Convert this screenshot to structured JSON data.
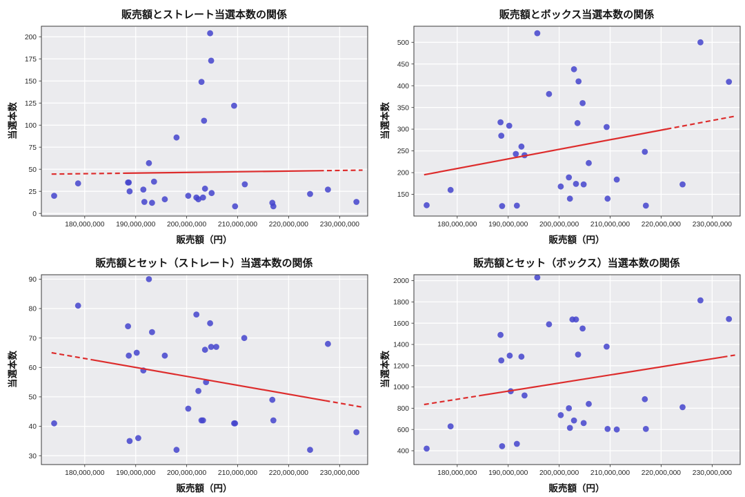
{
  "style": {
    "dot_color": "#4444cc",
    "dot_opacity": 0.85,
    "trend_color": "#dd2c2c",
    "plot_bg": "#ebebee",
    "grid_color": "#ffffff",
    "spine_color": "#3a3a3a",
    "tick_text_color": "#262626"
  },
  "chart_data": [
    {
      "type": "scatter",
      "title": "販売額とストレート当選本数の関係",
      "xlabel": "販売額（円）",
      "ylabel": "当選本数",
      "x_unit": "million_yen",
      "xlim_million": [
        171.5,
        235.5
      ],
      "ylim": [
        -3,
        212
      ],
      "xticks_million": [
        180,
        190,
        200,
        210,
        220,
        230
      ],
      "xtick_labels": [
        "180,000,000",
        "190,000,000",
        "200,000,000",
        "210,000,000",
        "220,000,000",
        "230,000,000"
      ],
      "yticks": [
        0,
        25,
        50,
        75,
        100,
        125,
        150,
        175,
        200
      ],
      "points": [
        [
          174.0,
          20
        ],
        [
          178.7,
          34
        ],
        [
          188.5,
          35
        ],
        [
          188.65,
          35
        ],
        [
          188.8,
          25
        ],
        [
          191.5,
          27
        ],
        [
          191.7,
          13
        ],
        [
          192.6,
          57
        ],
        [
          193.2,
          12
        ],
        [
          193.6,
          36
        ],
        [
          195.7,
          16
        ],
        [
          198.0,
          86
        ],
        [
          200.3,
          20
        ],
        [
          201.9,
          18
        ],
        [
          202.3,
          16
        ],
        [
          202.9,
          149
        ],
        [
          203.2,
          18
        ],
        [
          203.4,
          105
        ],
        [
          203.6,
          28
        ],
        [
          204.6,
          204
        ],
        [
          204.8,
          173
        ],
        [
          204.9,
          23
        ],
        [
          209.3,
          122
        ],
        [
          209.5,
          8
        ],
        [
          211.4,
          33
        ],
        [
          216.8,
          12
        ],
        [
          217.0,
          8
        ],
        [
          224.2,
          22
        ],
        [
          227.7,
          27
        ],
        [
          233.3,
          13
        ]
      ],
      "trend": {
        "x1_million": 173.5,
        "y1": 44.5,
        "x2_million": 234.5,
        "y2": 49.0,
        "dash_left": 0.24,
        "dash_right": 0.14
      }
    },
    {
      "type": "scatter",
      "title": "販売額とボックス当選本数の関係",
      "xlabel": "販売額（円）",
      "ylabel": "当選本数",
      "x_unit": "million_yen",
      "xlim_million": [
        171.5,
        235.5
      ],
      "ylim": [
        100,
        537
      ],
      "xticks_million": [
        180,
        190,
        200,
        210,
        220,
        230
      ],
      "xtick_labels": [
        "180,000,000",
        "190,000,000",
        "200,000,000",
        "210,000,000",
        "220,000,000",
        "230,000,000"
      ],
      "yticks": [
        150,
        200,
        250,
        300,
        350,
        400,
        450,
        500
      ],
      "points": [
        [
          174.0,
          125
        ],
        [
          178.7,
          160
        ],
        [
          188.5,
          316
        ],
        [
          188.65,
          285
        ],
        [
          188.8,
          123
        ],
        [
          190.2,
          308
        ],
        [
          191.5,
          243
        ],
        [
          191.7,
          124
        ],
        [
          192.6,
          260
        ],
        [
          193.2,
          240
        ],
        [
          195.7,
          521
        ],
        [
          198.0,
          381
        ],
        [
          200.3,
          168
        ],
        [
          201.9,
          189
        ],
        [
          202.1,
          140
        ],
        [
          202.9,
          438
        ],
        [
          203.3,
          174
        ],
        [
          203.6,
          314
        ],
        [
          203.8,
          410
        ],
        [
          204.6,
          360
        ],
        [
          204.8,
          173
        ],
        [
          205.8,
          222
        ],
        [
          209.3,
          305
        ],
        [
          209.5,
          140
        ],
        [
          211.3,
          184
        ],
        [
          216.8,
          248
        ],
        [
          217.0,
          124
        ],
        [
          224.2,
          173
        ],
        [
          227.7,
          500
        ],
        [
          233.3,
          409
        ]
      ],
      "trend": {
        "x1_million": 173.5,
        "y1": 195,
        "x2_million": 234.5,
        "y2": 330,
        "dash_left": 0.0,
        "dash_right": 0.22
      }
    },
    {
      "type": "scatter",
      "title": "販売額とセット（ストレート）当選本数の関係",
      "xlabel": "販売額（円）",
      "ylabel": "当選本数",
      "x_unit": "million_yen",
      "xlim_million": [
        171.5,
        235.5
      ],
      "ylim": [
        27,
        91.5
      ],
      "xticks_million": [
        180,
        190,
        200,
        210,
        220,
        230
      ],
      "xtick_labels": [
        "180,000,000",
        "190,000,000",
        "200,000,000",
        "210,000,000",
        "220,000,000",
        "230,000,000"
      ],
      "yticks": [
        30,
        40,
        50,
        60,
        70,
        80,
        90
      ],
      "points": [
        [
          174.0,
          41
        ],
        [
          178.7,
          81
        ],
        [
          188.5,
          74
        ],
        [
          188.65,
          64
        ],
        [
          188.8,
          35
        ],
        [
          190.2,
          65
        ],
        [
          190.5,
          36
        ],
        [
          191.5,
          59
        ],
        [
          192.6,
          90
        ],
        [
          193.2,
          72
        ],
        [
          195.7,
          64
        ],
        [
          198.0,
          32
        ],
        [
          200.3,
          46
        ],
        [
          201.9,
          78
        ],
        [
          202.3,
          52
        ],
        [
          202.9,
          42
        ],
        [
          203.2,
          42
        ],
        [
          203.6,
          66
        ],
        [
          203.8,
          55
        ],
        [
          204.6,
          75
        ],
        [
          204.8,
          67
        ],
        [
          205.8,
          67
        ],
        [
          209.3,
          41
        ],
        [
          209.5,
          41
        ],
        [
          211.3,
          70
        ],
        [
          216.8,
          49
        ],
        [
          217.0,
          42
        ],
        [
          224.2,
          32
        ],
        [
          227.7,
          68
        ],
        [
          233.3,
          38
        ]
      ],
      "trend": {
        "x1_million": 173.5,
        "y1": 65,
        "x2_million": 234.5,
        "y2": 46.5,
        "dash_left": 0.13,
        "dash_right": 0.12
      }
    },
    {
      "type": "scatter",
      "title": "販売額とセット（ボックス）当選本数の関係",
      "xlabel": "販売額（円）",
      "ylabel": "当選本数",
      "x_unit": "million_yen",
      "xlim_million": [
        171.5,
        235.5
      ],
      "ylim": [
        270,
        2056
      ],
      "xticks_million": [
        180,
        190,
        200,
        210,
        220,
        230
      ],
      "xtick_labels": [
        "180,000,000",
        "190,000,000",
        "200,000,000",
        "210,000,000",
        "220,000,000",
        "230,000,000"
      ],
      "yticks": [
        400,
        600,
        800,
        1000,
        1200,
        1400,
        1600,
        1800,
        2000
      ],
      "points": [
        [
          174.0,
          420
        ],
        [
          178.7,
          630
        ],
        [
          188.5,
          1490
        ],
        [
          188.65,
          1250
        ],
        [
          188.8,
          443
        ],
        [
          190.3,
          1295
        ],
        [
          190.5,
          960
        ],
        [
          191.7,
          465
        ],
        [
          192.6,
          1285
        ],
        [
          193.2,
          920
        ],
        [
          195.7,
          2030
        ],
        [
          198.0,
          1590
        ],
        [
          200.3,
          735
        ],
        [
          201.9,
          800
        ],
        [
          202.1,
          615
        ],
        [
          202.6,
          1635
        ],
        [
          202.9,
          685
        ],
        [
          203.3,
          1635
        ],
        [
          203.7,
          1305
        ],
        [
          204.6,
          1550
        ],
        [
          204.8,
          660
        ],
        [
          205.8,
          840
        ],
        [
          209.3,
          1380
        ],
        [
          209.5,
          605
        ],
        [
          211.3,
          600
        ],
        [
          216.8,
          885
        ],
        [
          217.0,
          605
        ],
        [
          224.2,
          810
        ],
        [
          227.7,
          1815
        ],
        [
          233.3,
          1640
        ]
      ],
      "trend": {
        "x1_million": 173.5,
        "y1": 835,
        "x2_million": 234.5,
        "y2": 1300,
        "dash_left": 0.18,
        "dash_right": 0.04
      }
    }
  ]
}
